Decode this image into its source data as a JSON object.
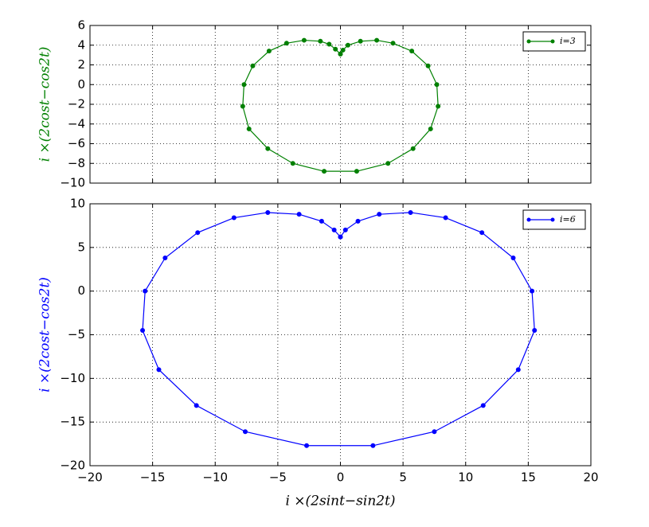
{
  "chart_data": [
    {
      "type": "line",
      "ylabel": "i ×(2cost−cos2t)",
      "ylabel_color": "#008000",
      "xlim": [
        -20,
        20
      ],
      "ylim": [
        -10,
        6
      ],
      "xticks": [
        -20,
        -15,
        -10,
        -5,
        0,
        5,
        10,
        15,
        20
      ],
      "yticks": [
        {
          "value": -10,
          "label": "−10"
        },
        {
          "value": -8,
          "label": "−8"
        },
        {
          "value": -6,
          "label": "−6"
        },
        {
          "value": -4,
          "label": "−4"
        },
        {
          "value": -2,
          "label": "−2"
        },
        0,
        2,
        4,
        6
      ],
      "grid": true,
      "legend": "upper right",
      "show_xtick_labels": false,
      "series": [
        {
          "name": "i=3",
          "color": "#008000",
          "x": [
            0,
            -0.4,
            -0.9,
            -1.6,
            -2.9,
            -4.3,
            -5.7,
            -7.0,
            -7.7,
            -7.8,
            -7.3,
            -5.8,
            -3.8,
            -1.3,
            1.3,
            3.8,
            5.8,
            7.2,
            7.8,
            7.7,
            7.0,
            5.7,
            4.2,
            2.9,
            1.6,
            0.6,
            0.2,
            0
          ],
          "values": [
            3.1,
            3.6,
            4.1,
            4.4,
            4.5,
            4.2,
            3.4,
            1.9,
            0,
            -2.2,
            -4.5,
            -6.5,
            -8.0,
            -8.8,
            -8.8,
            -8.0,
            -6.5,
            -4.5,
            -2.2,
            0,
            1.9,
            3.4,
            4.2,
            4.5,
            4.4,
            4.0,
            3.5,
            3.1
          ]
        }
      ]
    },
    {
      "type": "line",
      "ylabel": "i ×(2cost−cos2t)",
      "ylabel_color": "#0000ff",
      "xlabel": "i ×(2sint−sin2t)",
      "xlim": [
        -20,
        20
      ],
      "ylim": [
        -20,
        10
      ],
      "xticks": [
        {
          "value": -20,
          "label": "−20"
        },
        {
          "value": -15,
          "label": "−15"
        },
        {
          "value": -10,
          "label": "−10"
        },
        {
          "value": -5,
          "label": "−5"
        },
        0,
        5,
        10,
        15,
        20
      ],
      "yticks": [
        {
          "value": -20,
          "label": "−20"
        },
        {
          "value": -15,
          "label": "−15"
        },
        {
          "value": -10,
          "label": "−10"
        },
        {
          "value": -5,
          "label": "−5"
        },
        0,
        5,
        10
      ],
      "grid": true,
      "legend": "upper right",
      "show_xtick_labels": true,
      "series": [
        {
          "name": "i=6",
          "color": "#0000ff",
          "x": [
            0,
            -0.5,
            -1.5,
            -3.3,
            -5.8,
            -8.5,
            -11.4,
            -14.0,
            -15.6,
            -15.8,
            -14.5,
            -11.5,
            -7.6,
            -2.7,
            2.6,
            7.5,
            11.4,
            14.2,
            15.5,
            15.3,
            13.8,
            11.3,
            8.4,
            5.6,
            3.1,
            1.4,
            0.4,
            0
          ],
          "values": [
            6.2,
            7.0,
            8.0,
            8.8,
            9.0,
            8.4,
            6.7,
            3.8,
            0,
            -4.5,
            -9.0,
            -13.1,
            -16.1,
            -17.7,
            -17.7,
            -16.1,
            -13.1,
            -9.0,
            -4.5,
            0,
            3.8,
            6.7,
            8.4,
            9.0,
            8.8,
            8.0,
            7.0,
            6.2
          ]
        }
      ]
    }
  ]
}
